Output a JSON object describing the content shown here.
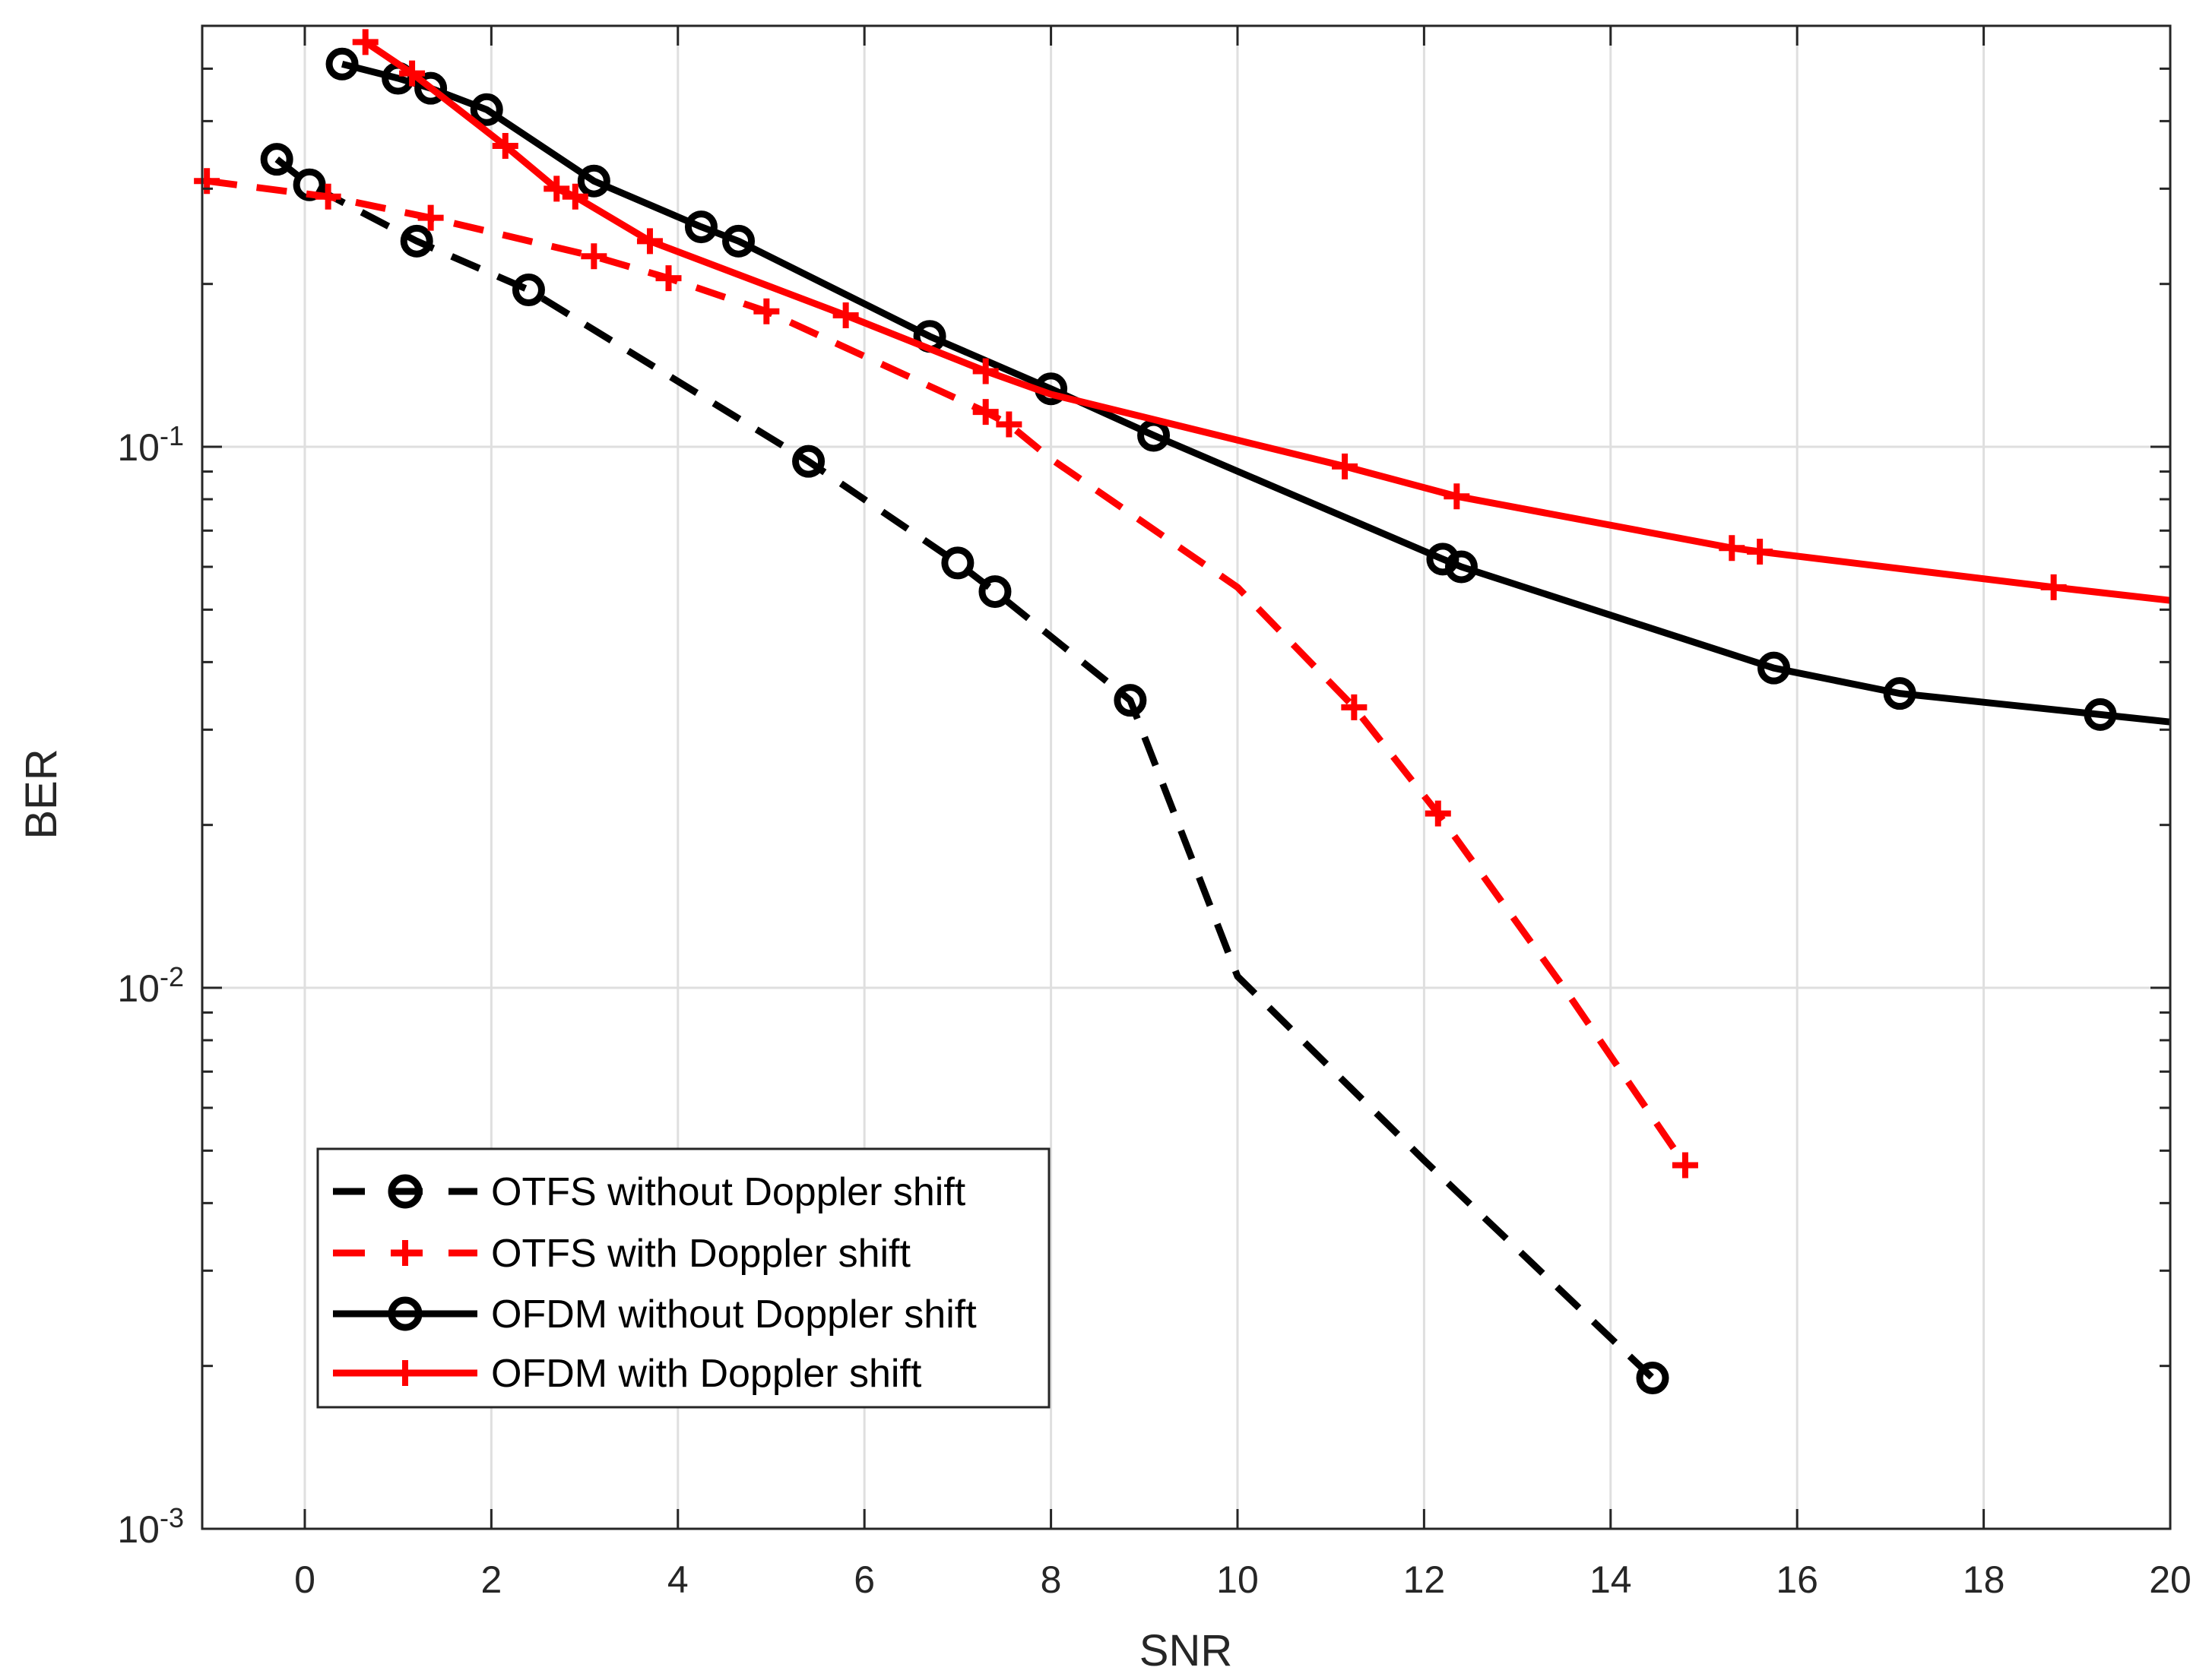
{
  "chart_data": {
    "type": "line",
    "title": "",
    "xlabel": "SNR",
    "ylabel": "BER",
    "xlim": [
      -1.1,
      20
    ],
    "ylim": [
      0.001,
      0.6
    ],
    "yscale": "log",
    "grid": true,
    "legend_position": "bottom-left",
    "x_ticks": [
      0,
      2,
      4,
      6,
      8,
      10,
      12,
      14,
      16,
      18,
      20
    ],
    "x_tick_labels": [
      "0",
      "2",
      "4",
      "6",
      "8",
      "10",
      "12",
      "14",
      "16",
      "18",
      "20"
    ],
    "y_ticks": [
      {
        "value": 0.1,
        "base": "10",
        "exp": "-1"
      },
      {
        "value": 0.01,
        "base": "10",
        "exp": "-2"
      },
      {
        "value": 0.001,
        "base": "10",
        "exp": "-3"
      }
    ],
    "series": [
      {
        "name": "OTFS without Doppler shift",
        "color": "#000000",
        "dash": "dashed",
        "marker": "circle",
        "x": [
          -0.3,
          0.05,
          1.2,
          2.4,
          5.4,
          7.0,
          7.4,
          8.85,
          10.0,
          12.0,
          14.45
        ],
        "y": [
          0.34,
          0.305,
          0.24,
          0.195,
          0.094,
          0.061,
          0.054,
          0.034,
          0.0105,
          0.0048,
          0.0019
        ],
        "marker_idx": [
          0,
          1,
          2,
          3,
          4,
          5,
          6,
          7,
          10
        ]
      },
      {
        "name": "OTFS with Doppler shift",
        "color": "#ff0000",
        "dash": "dashed",
        "marker": "plus",
        "x": [
          -1.05,
          0.25,
          1.35,
          3.1,
          3.9,
          4.95,
          7.3,
          7.55,
          8.0,
          10.0,
          11.25,
          12.15,
          13.5,
          14.8
        ],
        "y": [
          0.31,
          0.29,
          0.265,
          0.225,
          0.205,
          0.178,
          0.116,
          0.11,
          0.095,
          0.055,
          0.033,
          0.021,
          0.01,
          0.0047
        ],
        "marker_idx": [
          0,
          1,
          2,
          3,
          4,
          5,
          6,
          7,
          10,
          11,
          13
        ]
      },
      {
        "name": "OFDM without Doppler shift",
        "color": "#000000",
        "dash": "solid",
        "marker": "circle",
        "x": [
          0.4,
          1.0,
          1.35,
          1.95,
          3.1,
          4.25,
          4.65,
          6.7,
          8.0,
          9.1,
          12.2,
          12.4,
          15.75,
          17.1,
          19.25,
          20.0
        ],
        "y": [
          0.51,
          0.48,
          0.46,
          0.42,
          0.31,
          0.255,
          0.24,
          0.16,
          0.128,
          0.105,
          0.062,
          0.06,
          0.039,
          0.035,
          0.032,
          0.031
        ],
        "marker_idx": [
          0,
          1,
          2,
          3,
          4,
          5,
          6,
          7,
          8,
          9,
          10,
          11,
          12,
          13,
          14
        ]
      },
      {
        "name": "OFDM with Doppler shift",
        "color": "#ff0000",
        "dash": "solid",
        "marker": "plus",
        "x": [
          0.65,
          1.15,
          2.15,
          2.7,
          2.9,
          3.7,
          5.8,
          7.3,
          8.0,
          11.15,
          12.35,
          15.3,
          15.6,
          18.75,
          20.0
        ],
        "y": [
          0.56,
          0.49,
          0.36,
          0.3,
          0.29,
          0.24,
          0.175,
          0.138,
          0.125,
          0.092,
          0.081,
          0.065,
          0.064,
          0.055,
          0.052
        ],
        "marker_idx": [
          0,
          1,
          2,
          3,
          4,
          5,
          6,
          7,
          9,
          10,
          11,
          12,
          13
        ]
      }
    ]
  }
}
